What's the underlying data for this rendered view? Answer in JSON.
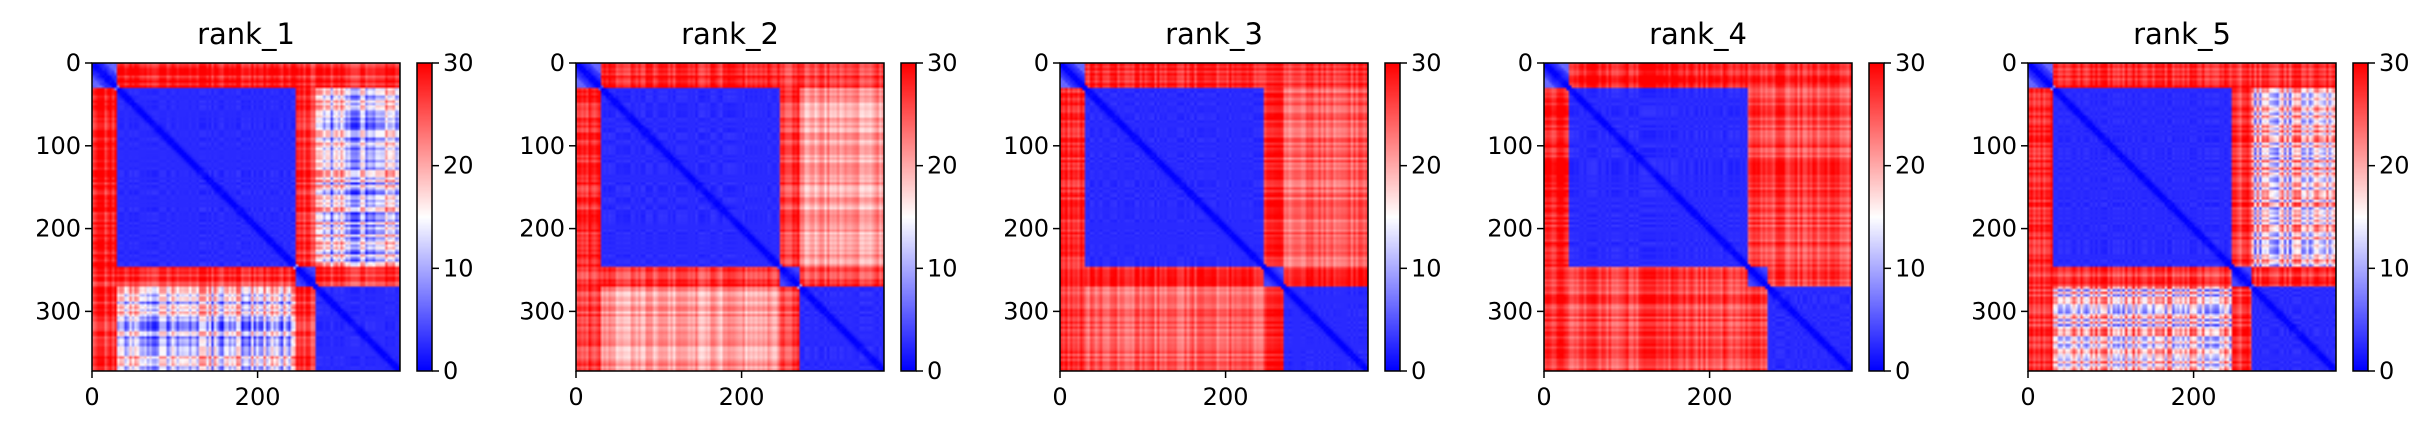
{
  "chart_data": [
    {
      "type": "heatmap",
      "title": "rank_1",
      "n": 372,
      "domains": [
        [
          0,
          30
        ],
        [
          31,
          245
        ],
        [
          246,
          270
        ],
        [
          271,
          371
        ]
      ],
      "interaction_means": [
        [
          6,
          28,
          27,
          27
        ],
        [
          28,
          2.5,
          27,
          13
        ],
        [
          27,
          27,
          4,
          27
        ],
        [
          27,
          13,
          27,
          2.5
        ]
      ],
      "x_ticks": [
        0,
        200
      ],
      "y_ticks": [
        0,
        100,
        200,
        300
      ],
      "colorbar": {
        "min": 0,
        "max": 30,
        "ticks": [
          0,
          10,
          20,
          30
        ]
      },
      "colormap": [
        "#0000ff",
        "#ffffff",
        "#ff0000"
      ]
    },
    {
      "type": "heatmap",
      "title": "rank_2",
      "n": 372,
      "domains": [
        [
          0,
          30
        ],
        [
          31,
          245
        ],
        [
          246,
          270
        ],
        [
          271,
          371
        ]
      ],
      "interaction_means": [
        [
          6,
          28,
          27,
          27
        ],
        [
          28,
          2.5,
          27,
          21
        ],
        [
          27,
          27,
          4,
          27
        ],
        [
          27,
          21,
          27,
          2.5
        ]
      ],
      "x_ticks": [
        0,
        200
      ],
      "y_ticks": [
        0,
        100,
        200,
        300
      ],
      "colorbar": {
        "min": 0,
        "max": 30,
        "ticks": [
          0,
          10,
          20,
          30
        ]
      },
      "colormap": [
        "#0000ff",
        "#ffffff",
        "#ff0000"
      ]
    },
    {
      "type": "heatmap",
      "title": "rank_3",
      "n": 372,
      "domains": [
        [
          0,
          30
        ],
        [
          31,
          245
        ],
        [
          246,
          270
        ],
        [
          271,
          371
        ]
      ],
      "interaction_means": [
        [
          6,
          28,
          27,
          27
        ],
        [
          28,
          2.5,
          27,
          24
        ],
        [
          27,
          27,
          4,
          27
        ],
        [
          27,
          24,
          27,
          2.5
        ]
      ],
      "x_ticks": [
        0,
        200
      ],
      "y_ticks": [
        0,
        100,
        200,
        300
      ],
      "colorbar": {
        "min": 0,
        "max": 30,
        "ticks": [
          0,
          10,
          20,
          30
        ]
      },
      "colormap": [
        "#0000ff",
        "#ffffff",
        "#ff0000"
      ]
    },
    {
      "type": "heatmap",
      "title": "rank_4",
      "n": 372,
      "domains": [
        [
          0,
          30
        ],
        [
          31,
          245
        ],
        [
          246,
          270
        ],
        [
          271,
          371
        ]
      ],
      "interaction_means": [
        [
          6,
          28,
          27,
          27
        ],
        [
          28,
          2.5,
          27,
          26
        ],
        [
          27,
          27,
          4,
          27
        ],
        [
          27,
          26,
          27,
          2.5
        ]
      ],
      "x_ticks": [
        0,
        200
      ],
      "y_ticks": [
        0,
        100,
        200,
        300
      ],
      "colorbar": {
        "min": 0,
        "max": 30,
        "ticks": [
          0,
          10,
          20,
          30
        ]
      },
      "colormap": [
        "#0000ff",
        "#ffffff",
        "#ff0000"
      ]
    },
    {
      "type": "heatmap",
      "title": "rank_5",
      "n": 372,
      "domains": [
        [
          0,
          30
        ],
        [
          31,
          245
        ],
        [
          246,
          270
        ],
        [
          271,
          371
        ]
      ],
      "interaction_means": [
        [
          6,
          28,
          27,
          27
        ],
        [
          28,
          2.5,
          27,
          16
        ],
        [
          27,
          27,
          4,
          27
        ],
        [
          27,
          16,
          27,
          2.5
        ]
      ],
      "x_ticks": [
        0,
        200
      ],
      "y_ticks": [
        0,
        100,
        200,
        300
      ],
      "colorbar": {
        "min": 0,
        "max": 30,
        "ticks": [
          0,
          10,
          20,
          30
        ]
      },
      "colormap": [
        "#0000ff",
        "#ffffff",
        "#ff0000"
      ]
    }
  ]
}
